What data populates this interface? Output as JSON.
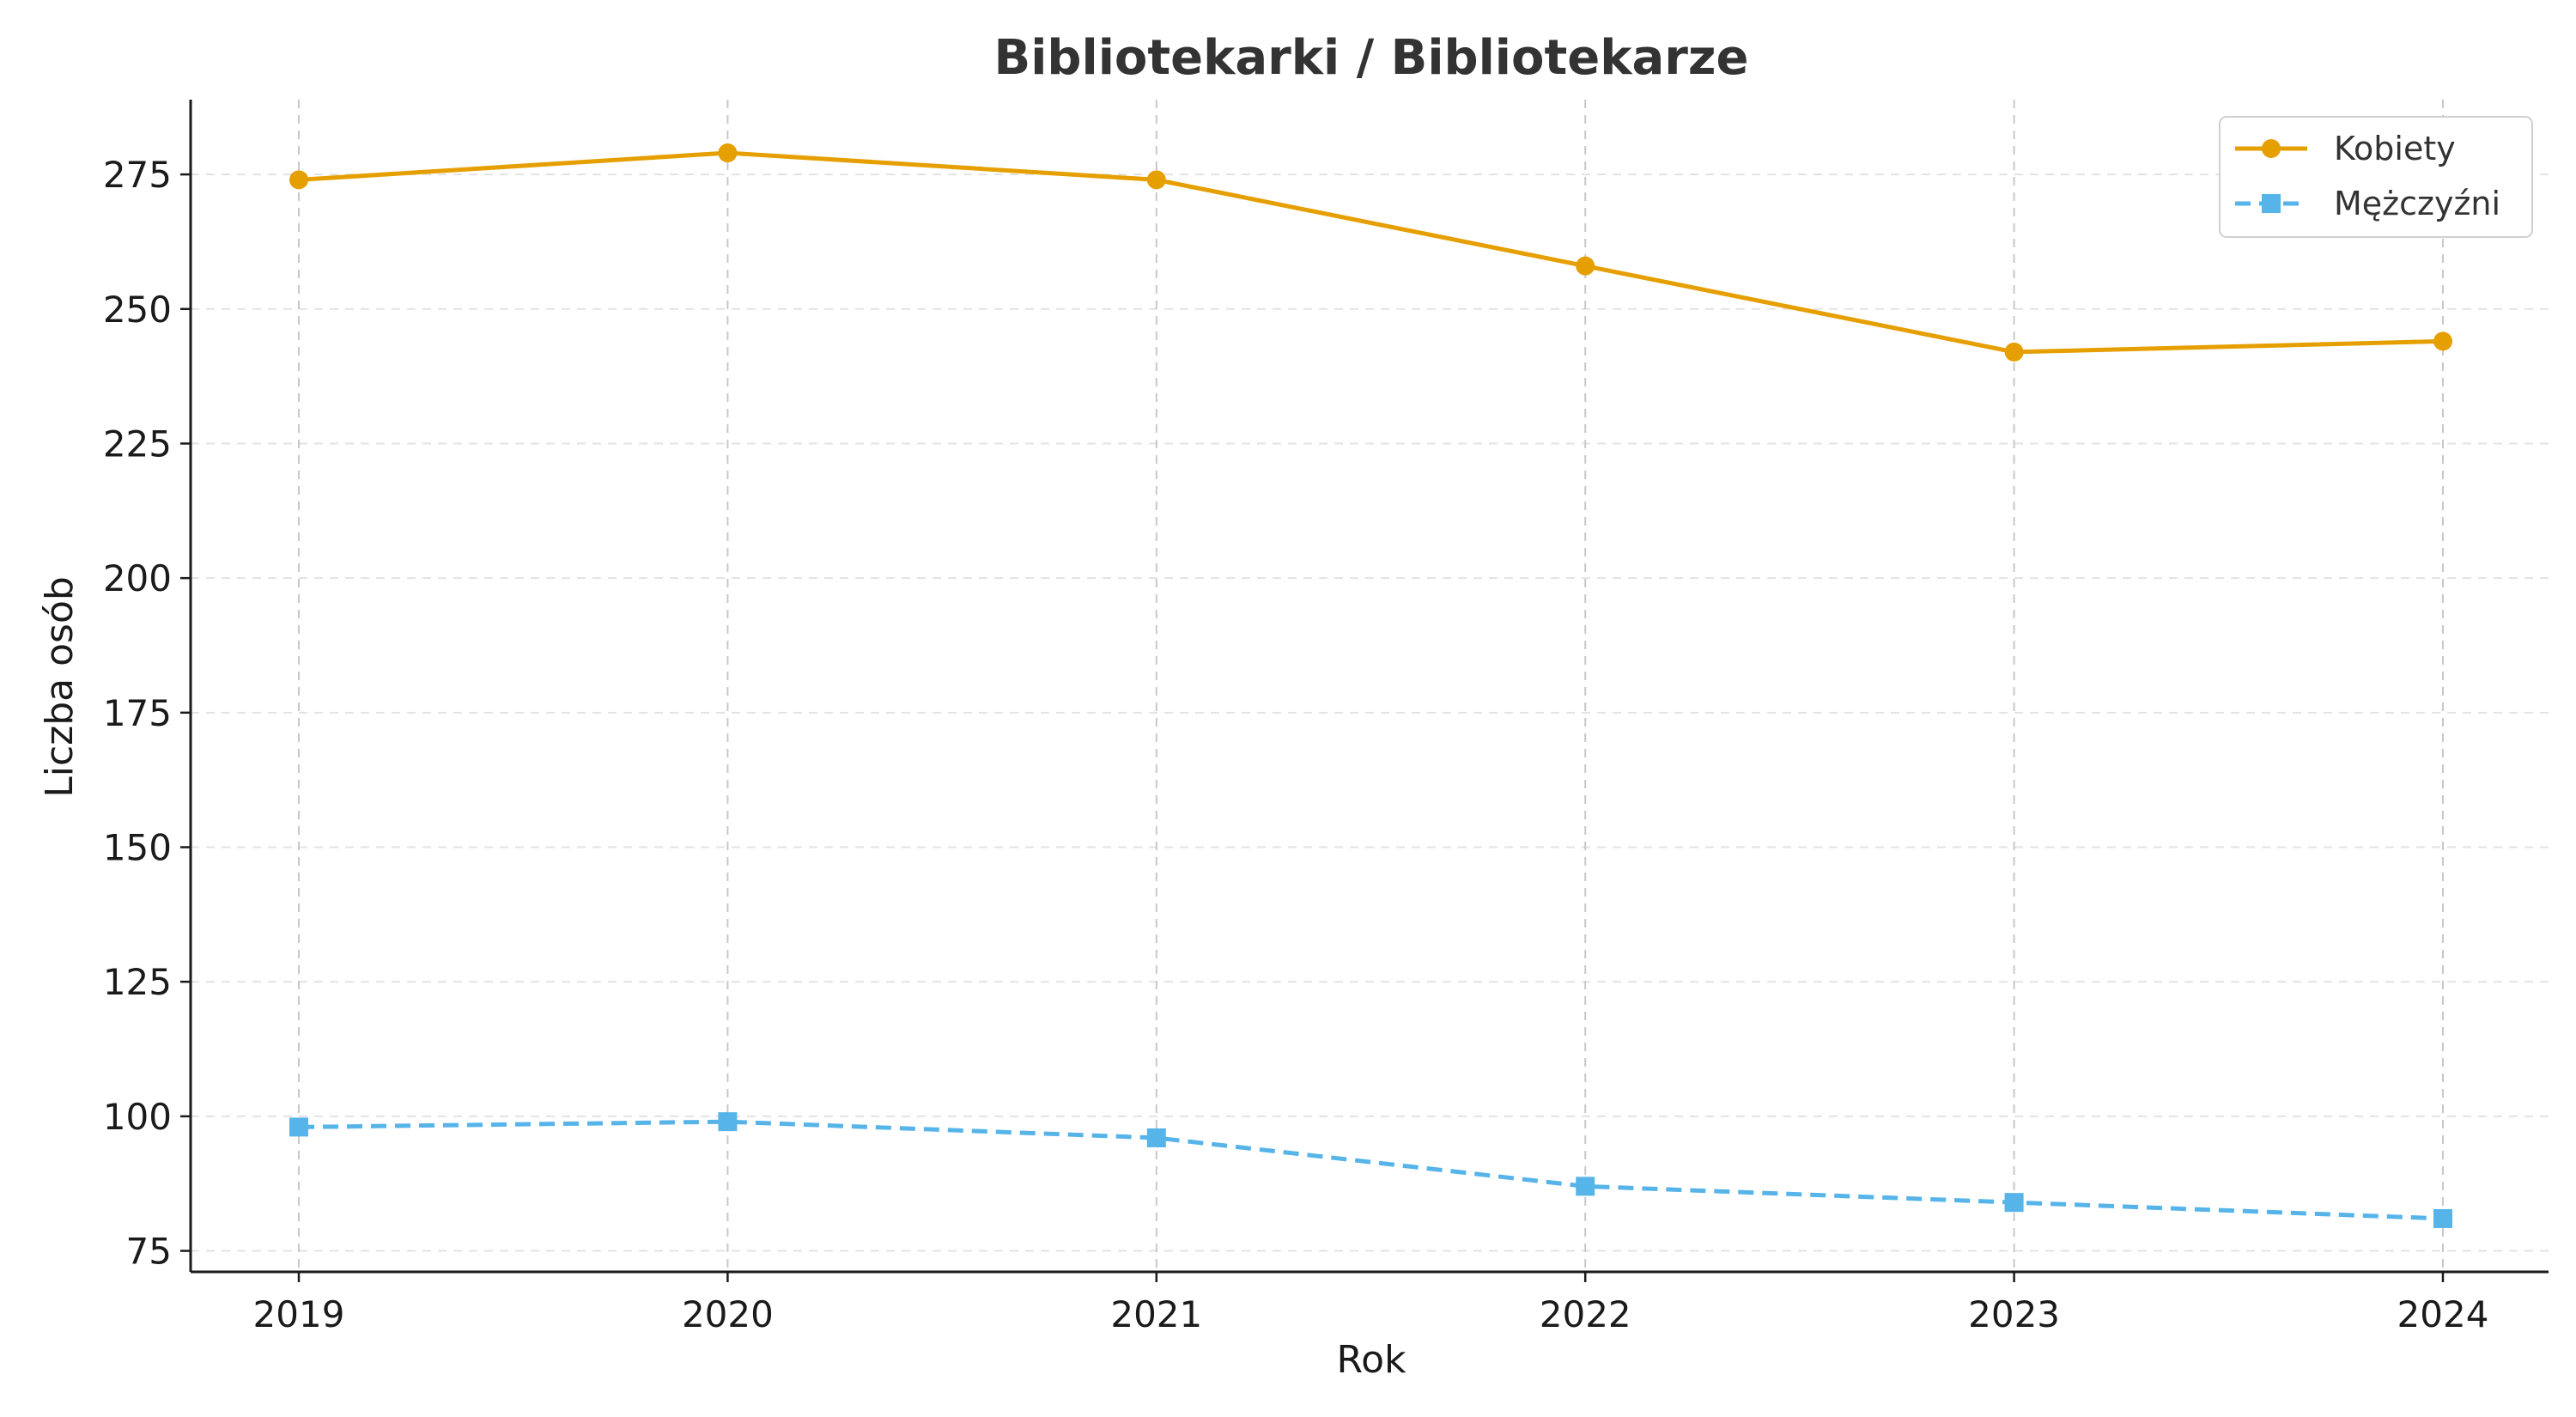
{
  "chart_data": {
    "type": "line",
    "title": "Bibliotekarki / Bibliotekarze",
    "xlabel": "Rok",
    "ylabel": "Liczba osób",
    "categories": [
      "2019",
      "2020",
      "2021",
      "2022",
      "2023",
      "2024"
    ],
    "series": [
      {
        "name": "Kobiety",
        "values": [
          274,
          279,
          274,
          258,
          242,
          244
        ],
        "color": "#E69F00",
        "marker": "circle",
        "line_style": "solid"
      },
      {
        "name": "Mężczyźni",
        "values": [
          98,
          99,
          96,
          87,
          84,
          81
        ],
        "color": "#56B4E9",
        "marker": "square",
        "line_style": "dashed"
      }
    ],
    "yticks": [
      75,
      100,
      125,
      150,
      175,
      200,
      225,
      250,
      275
    ],
    "ylim": [
      71.1,
      288.9
    ],
    "grid": true,
    "legend_position": "top-right"
  }
}
